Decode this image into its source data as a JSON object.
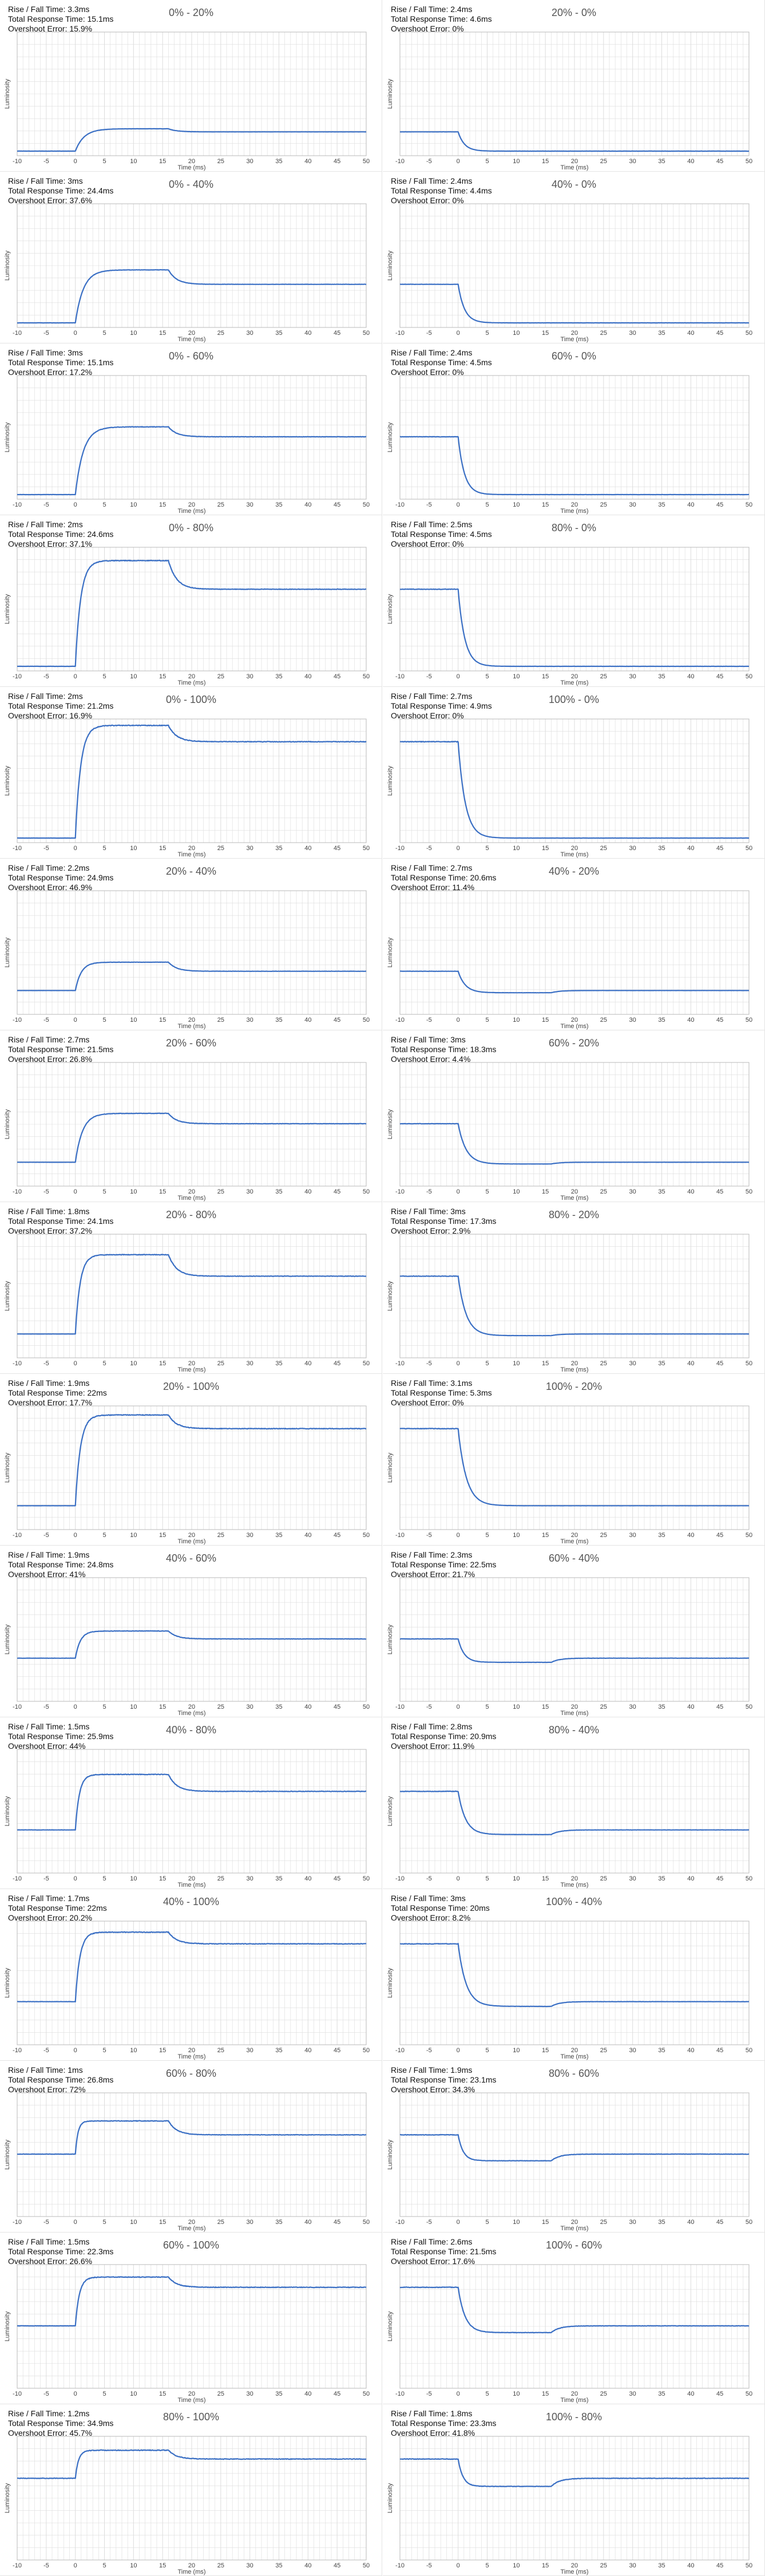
{
  "chart_data": [
    {
      "type": "line",
      "title": "0% - 20%",
      "rise_fall": "Rise / Fall Time: 3.3ms",
      "total": "Total Response Time: 15.1ms",
      "overshoot": "Overshoot Error: 15.9%",
      "xlabel": "Time (ms)",
      "ylabel": "Luminosity",
      "xlim": [
        -10,
        50
      ],
      "xticks": [
        -10,
        -5,
        0,
        5,
        10,
        15,
        20,
        25,
        30,
        35,
        40,
        45,
        50
      ],
      "grid": true,
      "start": 0.0,
      "end": 0.2,
      "peak": 0.232,
      "t_rise": 3.3
    },
    {
      "type": "line",
      "title": "20% - 0%",
      "rise_fall": "Rise / Fall Time: 2.4ms",
      "total": "Total Response Time: 4.6ms",
      "overshoot": "Overshoot Error: 0%",
      "xlabel": "Time (ms)",
      "ylabel": "Luminosity",
      "xlim": [
        -10,
        50
      ],
      "xticks": [
        -10,
        -5,
        0,
        5,
        10,
        15,
        20,
        25,
        30,
        35,
        40,
        45,
        50
      ],
      "grid": true,
      "start": 0.2,
      "end": 0.0,
      "peak": 0.0,
      "t_rise": 2.4
    },
    {
      "type": "line",
      "title": "0% - 40%",
      "rise_fall": "Rise / Fall Time: 3ms",
      "total": "Total Response Time: 24.4ms",
      "overshoot": "Overshoot Error: 37.6%",
      "xlabel": "Time (ms)",
      "ylabel": "Luminosity",
      "xlim": [
        -10,
        50
      ],
      "xticks": [
        -10,
        -5,
        0,
        5,
        10,
        15,
        20,
        25,
        30,
        35,
        40,
        45,
        50
      ],
      "grid": true,
      "start": 0.0,
      "end": 0.4,
      "peak": 0.55,
      "t_rise": 3.0
    },
    {
      "type": "line",
      "title": "40% - 0%",
      "rise_fall": "Rise / Fall Time: 2.4ms",
      "total": "Total Response Time: 4.4ms",
      "overshoot": "Overshoot Error: 0%",
      "xlabel": "Time (ms)",
      "ylabel": "Luminosity",
      "xlim": [
        -10,
        50
      ],
      "xticks": [
        -10,
        -5,
        0,
        5,
        10,
        15,
        20,
        25,
        30,
        35,
        40,
        45,
        50
      ],
      "grid": true,
      "start": 0.4,
      "end": 0.0,
      "peak": 0.0,
      "t_rise": 2.4
    },
    {
      "type": "line",
      "title": "0% - 60%",
      "rise_fall": "Rise / Fall Time: 3ms",
      "total": "Total Response Time: 15.1ms",
      "overshoot": "Overshoot Error: 17.2%",
      "xlabel": "Time (ms)",
      "ylabel": "Luminosity",
      "xlim": [
        -10,
        50
      ],
      "xticks": [
        -10,
        -5,
        0,
        5,
        10,
        15,
        20,
        25,
        30,
        35,
        40,
        45,
        50
      ],
      "grid": true,
      "start": 0.0,
      "end": 0.6,
      "peak": 0.703,
      "t_rise": 3.0
    },
    {
      "type": "line",
      "title": "60% - 0%",
      "rise_fall": "Rise / Fall Time: 2.4ms",
      "total": "Total Response Time: 4.5ms",
      "overshoot": "Overshoot Error: 0%",
      "xlabel": "Time (ms)",
      "ylabel": "Luminosity",
      "xlim": [
        -10,
        50
      ],
      "xticks": [
        -10,
        -5,
        0,
        5,
        10,
        15,
        20,
        25,
        30,
        35,
        40,
        45,
        50
      ],
      "grid": true,
      "start": 0.6,
      "end": 0.0,
      "peak": 0.0,
      "t_rise": 2.4
    },
    {
      "type": "line",
      "title": "0% - 80%",
      "rise_fall": "Rise / Fall Time: 2ms",
      "total": "Total Response Time: 24.6ms",
      "overshoot": "Overshoot Error: 37.1%",
      "xlabel": "Time (ms)",
      "ylabel": "Luminosity",
      "xlim": [
        -10,
        50
      ],
      "xticks": [
        -10,
        -5,
        0,
        5,
        10,
        15,
        20,
        25,
        30,
        35,
        40,
        45,
        50
      ],
      "grid": true,
      "start": 0.0,
      "end": 0.8,
      "peak": 1.097,
      "t_rise": 2.0
    },
    {
      "type": "line",
      "title": "80% - 0%",
      "rise_fall": "Rise / Fall Time: 2.5ms",
      "total": "Total Response Time: 4.5ms",
      "overshoot": "Overshoot Error: 0%",
      "xlabel": "Time (ms)",
      "ylabel": "Luminosity",
      "xlim": [
        -10,
        50
      ],
      "xticks": [
        -10,
        -5,
        0,
        5,
        10,
        15,
        20,
        25,
        30,
        35,
        40,
        45,
        50
      ],
      "grid": true,
      "start": 0.8,
      "end": 0.0,
      "peak": 0.0,
      "t_rise": 2.5
    },
    {
      "type": "line",
      "title": "0% - 100%",
      "rise_fall": "Rise / Fall Time: 2ms",
      "total": "Total Response Time: 21.2ms",
      "overshoot": "Overshoot Error: 16.9%",
      "xlabel": "Time (ms)",
      "ylabel": "Luminosity",
      "xlim": [
        -10,
        50
      ],
      "xticks": [
        -10,
        -5,
        0,
        5,
        10,
        15,
        20,
        25,
        30,
        35,
        40,
        45,
        50
      ],
      "grid": true,
      "start": 0.0,
      "end": 1.0,
      "peak": 1.169,
      "t_rise": 2.0
    },
    {
      "type": "line",
      "title": "100% - 0%",
      "rise_fall": "Rise / Fall Time: 2.7ms",
      "total": "Total Response Time: 4.9ms",
      "overshoot": "Overshoot Error: 0%",
      "xlabel": "Time (ms)",
      "ylabel": "Luminosity",
      "xlim": [
        -10,
        50
      ],
      "xticks": [
        -10,
        -5,
        0,
        5,
        10,
        15,
        20,
        25,
        30,
        35,
        40,
        45,
        50
      ],
      "grid": true,
      "start": 1.0,
      "end": 0.0,
      "peak": 0.0,
      "t_rise": 2.7
    },
    {
      "type": "line",
      "title": "20% - 40%",
      "rise_fall": "Rise / Fall Time: 2.2ms",
      "total": "Total Response Time: 24.9ms",
      "overshoot": "Overshoot Error: 46.9%",
      "xlabel": "Time (ms)",
      "ylabel": "Luminosity",
      "xlim": [
        -10,
        50
      ],
      "xticks": [
        -10,
        -5,
        0,
        5,
        10,
        15,
        20,
        25,
        30,
        35,
        40,
        45,
        50
      ],
      "grid": true,
      "start": 0.2,
      "end": 0.4,
      "peak": 0.494,
      "t_rise": 2.2
    },
    {
      "type": "line",
      "title": "40% - 20%",
      "rise_fall": "Rise / Fall Time: 2.7ms",
      "total": "Total Response Time: 20.6ms",
      "overshoot": "Overshoot Error: 11.4%",
      "xlabel": "Time (ms)",
      "ylabel": "Luminosity",
      "xlim": [
        -10,
        50
      ],
      "xticks": [
        -10,
        -5,
        0,
        5,
        10,
        15,
        20,
        25,
        30,
        35,
        40,
        45,
        50
      ],
      "grid": true,
      "start": 0.4,
      "end": 0.2,
      "peak": 0.177,
      "t_rise": 2.7
    },
    {
      "type": "line",
      "title": "20% - 60%",
      "rise_fall": "Rise / Fall Time: 2.7ms",
      "total": "Total Response Time: 21.5ms",
      "overshoot": "Overshoot Error: 26.8%",
      "xlabel": "Time (ms)",
      "ylabel": "Luminosity",
      "xlim": [
        -10,
        50
      ],
      "xticks": [
        -10,
        -5,
        0,
        5,
        10,
        15,
        20,
        25,
        30,
        35,
        40,
        45,
        50
      ],
      "grid": true,
      "start": 0.2,
      "end": 0.6,
      "peak": 0.707,
      "t_rise": 2.7
    },
    {
      "type": "line",
      "title": "60% - 20%",
      "rise_fall": "Rise / Fall Time: 3ms",
      "total": "Total Response Time: 18.3ms",
      "overshoot": "Overshoot Error: 4.4%",
      "xlabel": "Time (ms)",
      "ylabel": "Luminosity",
      "xlim": [
        -10,
        50
      ],
      "xticks": [
        -10,
        -5,
        0,
        5,
        10,
        15,
        20,
        25,
        30,
        35,
        40,
        45,
        50
      ],
      "grid": true,
      "start": 0.6,
      "end": 0.2,
      "peak": 0.182,
      "t_rise": 3.0
    },
    {
      "type": "line",
      "title": "20% - 80%",
      "rise_fall": "Rise / Fall Time: 1.8ms",
      "total": "Total Response Time: 24.1ms",
      "overshoot": "Overshoot Error: 37.2%",
      "xlabel": "Time (ms)",
      "ylabel": "Luminosity",
      "xlim": [
        -10,
        50
      ],
      "xticks": [
        -10,
        -5,
        0,
        5,
        10,
        15,
        20,
        25,
        30,
        35,
        40,
        45,
        50
      ],
      "grid": true,
      "start": 0.2,
      "end": 0.8,
      "peak": 1.023,
      "t_rise": 1.8
    },
    {
      "type": "line",
      "title": "80% - 20%",
      "rise_fall": "Rise / Fall Time: 3ms",
      "total": "Total Response Time: 17.3ms",
      "overshoot": "Overshoot Error: 2.9%",
      "xlabel": "Time (ms)",
      "ylabel": "Luminosity",
      "xlim": [
        -10,
        50
      ],
      "xticks": [
        -10,
        -5,
        0,
        5,
        10,
        15,
        20,
        25,
        30,
        35,
        40,
        45,
        50
      ],
      "grid": true,
      "start": 0.8,
      "end": 0.2,
      "peak": 0.183,
      "t_rise": 3.0
    },
    {
      "type": "line",
      "title": "20% - 100%",
      "rise_fall": "Rise / Fall Time: 1.9ms",
      "total": "Total Response Time: 22ms",
      "overshoot": "Overshoot Error: 17.7%",
      "xlabel": "Time (ms)",
      "ylabel": "Luminosity",
      "xlim": [
        -10,
        50
      ],
      "xticks": [
        -10,
        -5,
        0,
        5,
        10,
        15,
        20,
        25,
        30,
        35,
        40,
        45,
        50
      ],
      "grid": true,
      "start": 0.2,
      "end": 1.0,
      "peak": 1.142,
      "t_rise": 1.9
    },
    {
      "type": "line",
      "title": "100% - 20%",
      "rise_fall": "Rise / Fall Time: 3.1ms",
      "total": "Total Response Time: 5.3ms",
      "overshoot": "Overshoot Error: 0%",
      "xlabel": "Time (ms)",
      "ylabel": "Luminosity",
      "xlim": [
        -10,
        50
      ],
      "xticks": [
        -10,
        -5,
        0,
        5,
        10,
        15,
        20,
        25,
        30,
        35,
        40,
        45,
        50
      ],
      "grid": true,
      "start": 1.0,
      "end": 0.2,
      "peak": 0.2,
      "t_rise": 3.1
    },
    {
      "type": "line",
      "title": "40% - 60%",
      "rise_fall": "Rise / Fall Time: 1.9ms",
      "total": "Total Response Time: 24.8ms",
      "overshoot": "Overshoot Error: 41%",
      "xlabel": "Time (ms)",
      "ylabel": "Luminosity",
      "xlim": [
        -10,
        50
      ],
      "xticks": [
        -10,
        -5,
        0,
        5,
        10,
        15,
        20,
        25,
        30,
        35,
        40,
        45,
        50
      ],
      "grid": true,
      "start": 0.4,
      "end": 0.6,
      "peak": 0.682,
      "t_rise": 1.9
    },
    {
      "type": "line",
      "title": "60% - 40%",
      "rise_fall": "Rise / Fall Time: 2.3ms",
      "total": "Total Response Time: 22.5ms",
      "overshoot": "Overshoot Error: 21.7%",
      "xlabel": "Time (ms)",
      "ylabel": "Luminosity",
      "xlim": [
        -10,
        50
      ],
      "xticks": [
        -10,
        -5,
        0,
        5,
        10,
        15,
        20,
        25,
        30,
        35,
        40,
        45,
        50
      ],
      "grid": true,
      "start": 0.6,
      "end": 0.4,
      "peak": 0.357,
      "t_rise": 2.3
    },
    {
      "type": "line",
      "title": "40% - 80%",
      "rise_fall": "Rise / Fall Time: 1.5ms",
      "total": "Total Response Time: 25.9ms",
      "overshoot": "Overshoot Error: 44%",
      "xlabel": "Time (ms)",
      "ylabel": "Luminosity",
      "xlim": [
        -10,
        50
      ],
      "xticks": [
        -10,
        -5,
        0,
        5,
        10,
        15,
        20,
        25,
        30,
        35,
        40,
        45,
        50
      ],
      "grid": true,
      "start": 0.4,
      "end": 0.8,
      "peak": 0.976,
      "t_rise": 1.5
    },
    {
      "type": "line",
      "title": "80% - 40%",
      "rise_fall": "Rise / Fall Time: 2.8ms",
      "total": "Total Response Time: 20.9ms",
      "overshoot": "Overshoot Error: 11.9%",
      "xlabel": "Time (ms)",
      "ylabel": "Luminosity",
      "xlim": [
        -10,
        50
      ],
      "xticks": [
        -10,
        -5,
        0,
        5,
        10,
        15,
        20,
        25,
        30,
        35,
        40,
        45,
        50
      ],
      "grid": true,
      "start": 0.8,
      "end": 0.4,
      "peak": 0.352,
      "t_rise": 2.8
    },
    {
      "type": "line",
      "title": "40% - 100%",
      "rise_fall": "Rise / Fall Time: 1.7ms",
      "total": "Total Response Time: 22ms",
      "overshoot": "Overshoot Error: 20.2%",
      "xlabel": "Time (ms)",
      "ylabel": "Luminosity",
      "xlim": [
        -10,
        50
      ],
      "xticks": [
        -10,
        -5,
        0,
        5,
        10,
        15,
        20,
        25,
        30,
        35,
        40,
        45,
        50
      ],
      "grid": true,
      "start": 0.4,
      "end": 1.0,
      "peak": 1.121,
      "t_rise": 1.7
    },
    {
      "type": "line",
      "title": "100% - 40%",
      "rise_fall": "Rise / Fall Time: 3ms",
      "total": "Total Response Time: 20ms",
      "overshoot": "Overshoot Error: 8.2%",
      "xlabel": "Time (ms)",
      "ylabel": "Luminosity",
      "xlim": [
        -10,
        50
      ],
      "xticks": [
        -10,
        -5,
        0,
        5,
        10,
        15,
        20,
        25,
        30,
        35,
        40,
        45,
        50
      ],
      "grid": true,
      "start": 1.0,
      "end": 0.4,
      "peak": 0.351,
      "t_rise": 3.0
    },
    {
      "type": "line",
      "title": "60% - 80%",
      "rise_fall": "Rise / Fall Time: 1ms",
      "total": "Total Response Time: 26.8ms",
      "overshoot": "Overshoot Error: 72%",
      "xlabel": "Time (ms)",
      "ylabel": "Luminosity",
      "xlim": [
        -10,
        50
      ],
      "xticks": [
        -10,
        -5,
        0,
        5,
        10,
        15,
        20,
        25,
        30,
        35,
        40,
        45,
        50
      ],
      "grid": true,
      "start": 0.6,
      "end": 0.8,
      "peak": 0.944,
      "t_rise": 1.0
    },
    {
      "type": "line",
      "title": "80% - 60%",
      "rise_fall": "Rise / Fall Time: 1.9ms",
      "total": "Total Response Time: 23.1ms",
      "overshoot": "Overshoot Error: 34.3%",
      "xlabel": "Time (ms)",
      "ylabel": "Luminosity",
      "xlim": [
        -10,
        50
      ],
      "xticks": [
        -10,
        -5,
        0,
        5,
        10,
        15,
        20,
        25,
        30,
        35,
        40,
        45,
        50
      ],
      "grid": true,
      "start": 0.8,
      "end": 0.6,
      "peak": 0.531,
      "t_rise": 1.9
    },
    {
      "type": "line",
      "title": "60% - 100%",
      "rise_fall": "Rise / Fall Time: 1.5ms",
      "total": "Total Response Time: 22.3ms",
      "overshoot": "Overshoot Error: 26.6%",
      "xlabel": "Time (ms)",
      "ylabel": "Luminosity",
      "xlim": [
        -10,
        50
      ],
      "xticks": [
        -10,
        -5,
        0,
        5,
        10,
        15,
        20,
        25,
        30,
        35,
        40,
        45,
        50
      ],
      "grid": true,
      "start": 0.6,
      "end": 1.0,
      "peak": 1.106,
      "t_rise": 1.5
    },
    {
      "type": "line",
      "title": "100% - 60%",
      "rise_fall": "Rise / Fall Time: 2.6ms",
      "total": "Total Response Time: 21.5ms",
      "overshoot": "Overshoot Error: 17.6%",
      "xlabel": "Time (ms)",
      "ylabel": "Luminosity",
      "xlim": [
        -10,
        50
      ],
      "xticks": [
        -10,
        -5,
        0,
        5,
        10,
        15,
        20,
        25,
        30,
        35,
        40,
        45,
        50
      ],
      "grid": true,
      "start": 1.0,
      "end": 0.6,
      "peak": 0.53,
      "t_rise": 2.6
    },
    {
      "type": "line",
      "title": "80% - 100%",
      "rise_fall": "Rise / Fall Time: 1.2ms",
      "total": "Total Response Time: 34.9ms",
      "overshoot": "Overshoot Error: 45.7%",
      "xlabel": "Time (ms)",
      "ylabel": "Luminosity",
      "xlim": [
        -10,
        50
      ],
      "xticks": [
        -10,
        -5,
        0,
        5,
        10,
        15,
        20,
        25,
        30,
        35,
        40,
        45,
        50
      ],
      "grid": true,
      "start": 0.8,
      "end": 1.0,
      "peak": 1.091,
      "t_rise": 1.2
    },
    {
      "type": "line",
      "title": "100% - 80%",
      "rise_fall": "Rise / Fall Time: 1.8ms",
      "total": "Total Response Time: 23.3ms",
      "overshoot": "Overshoot Error: 41.8%",
      "xlabel": "Time (ms)",
      "ylabel": "Luminosity",
      "xlim": [
        -10,
        50
      ],
      "xticks": [
        -10,
        -5,
        0,
        5,
        10,
        15,
        20,
        25,
        30,
        35,
        40,
        45,
        50
      ],
      "grid": true,
      "start": 1.0,
      "end": 0.8,
      "peak": 0.716,
      "t_rise": 1.8
    }
  ],
  "colors": {
    "line": "#3a6fc4",
    "grid": "#dcdcdc",
    "axis": "#b8b8b8",
    "tick_text": "#444444"
  }
}
